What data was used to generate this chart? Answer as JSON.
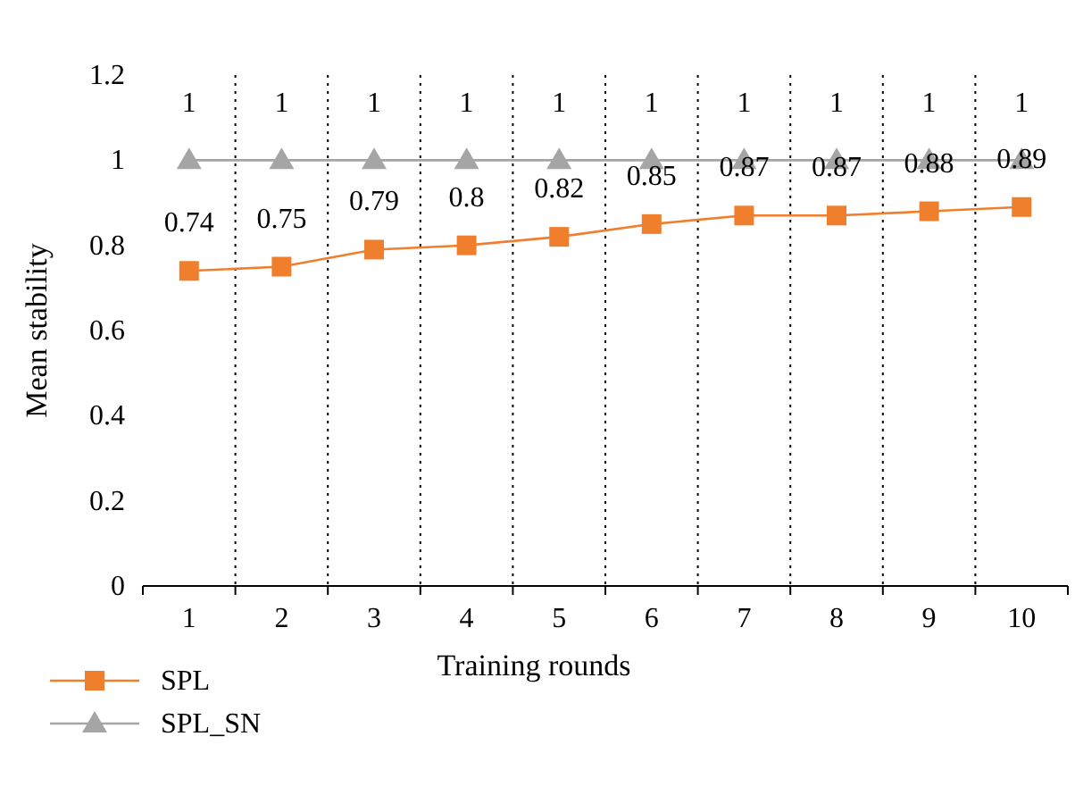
{
  "chart_data": {
    "type": "line",
    "xlabel": "Training rounds",
    "ylabel": "Mean stability",
    "categories": [
      "1",
      "2",
      "3",
      "4",
      "5",
      "6",
      "7",
      "8",
      "9",
      "10"
    ],
    "series": [
      {
        "name": "SPL",
        "color": "#f07f2d",
        "marker": "square",
        "values": [
          0.74,
          0.75,
          0.79,
          0.8,
          0.82,
          0.85,
          0.87,
          0.87,
          0.88,
          0.89
        ]
      },
      {
        "name": "SPL_SN",
        "color": "#a5a5a5",
        "marker": "triangle",
        "values": [
          1,
          1,
          1,
          1,
          1,
          1,
          1,
          1,
          1,
          1
        ]
      }
    ],
    "ylim": [
      0,
      1.2
    ],
    "yticks": [
      0,
      0.2,
      0.4,
      0.6,
      0.8,
      1,
      1.2
    ],
    "grid": "x",
    "data_labels": true,
    "legend": "bottom left",
    "line_style": "solid"
  }
}
